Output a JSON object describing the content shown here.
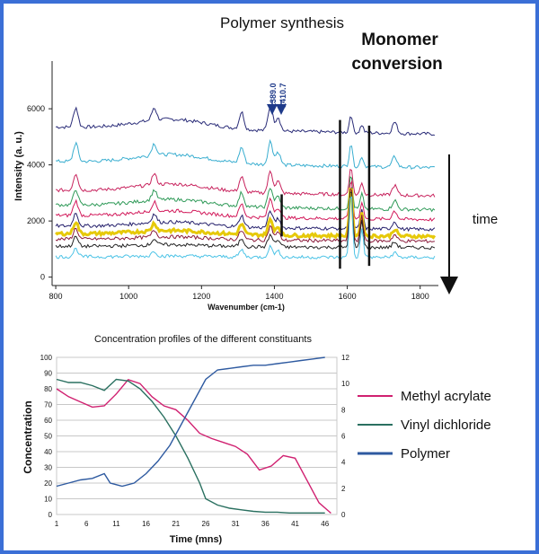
{
  "chart_data": [
    {
      "type": "line",
      "title": "",
      "xlabel": "Wavenumber (cm-1)",
      "ylabel": "Intensity (a. u.)",
      "xlim": [
        790,
        1850
      ],
      "ylim": [
        -300,
        7700
      ],
      "x_ticks": [
        "800",
        "1000",
        "1200",
        "1400",
        "1600",
        "1800"
      ],
      "y_ticks": [
        "0",
        "2000",
        "4000",
        "6000"
      ],
      "annotations": {
        "region1": "Polymer synthesis",
        "region2_line1": "Monomer",
        "region2_line2": "conversion",
        "peak1": "1389.0",
        "peak2": "1410.7",
        "arrow_label": "time"
      },
      "spectra_colors": [
        "#2a2c78",
        "#3aaed0",
        "#c8245e",
        "#2f9a58",
        "#d2195a",
        "#241f6b",
        "#e6c90a",
        "#8a1a3a",
        "#222222",
        "#4cc3e6"
      ],
      "spectra_offsets": [
        5100,
        3900,
        2900,
        2400,
        2050,
        1700,
        1450,
        1280,
        1050,
        700
      ],
      "peak_positions": [
        {
          "x": 855,
          "h": 700
        },
        {
          "x": 1070,
          "h": 450
        },
        {
          "x": 1310,
          "h": 600
        },
        {
          "x": 1389,
          "h": 900
        },
        {
          "x": 1410,
          "h": 500
        },
        {
          "x": 1610,
          "h": 1600
        },
        {
          "x": 1640,
          "h": 700
        },
        {
          "x": 1730,
          "h": 400
        }
      ],
      "vertical_markers": [
        1420,
        1580,
        1660
      ]
    },
    {
      "type": "line",
      "title": "Concentration profiles of the different constituants",
      "xlabel": "Time (mns)",
      "ylabel": "Concentration",
      "xlim": [
        1,
        48
      ],
      "ylim": [
        0,
        100
      ],
      "y2lim": [
        0,
        12
      ],
      "x_ticks": [
        "1",
        "6",
        "11",
        "16",
        "21",
        "26",
        "31",
        "36",
        "41",
        "46"
      ],
      "y_ticks": [
        "0",
        "10",
        "20",
        "30",
        "40",
        "50",
        "60",
        "70",
        "80",
        "90",
        "100"
      ],
      "y2_ticks": [
        "0",
        "2",
        "4",
        "6",
        "8",
        "10",
        "12"
      ],
      "series": [
        {
          "name": "Methyl acrylate",
          "color": "#d02070",
          "axis": "y2",
          "x": [
            1,
            3,
            5,
            7,
            9,
            11,
            13,
            15,
            17,
            19,
            21,
            23,
            25,
            27,
            29,
            31,
            33,
            35,
            37,
            39,
            41,
            43,
            45,
            47
          ],
          "values": [
            9.6,
            9.0,
            8.6,
            8.2,
            8.3,
            9.2,
            10.3,
            10.0,
            9.0,
            8.3,
            8.0,
            7.2,
            6.2,
            5.8,
            5.5,
            5.2,
            4.6,
            3.4,
            3.7,
            4.5,
            4.3,
            2.6,
            0.9,
            0.1
          ]
        },
        {
          "name": "Vinyl dichloride",
          "color": "#2a7060",
          "axis": "y1",
          "x": [
            1,
            3,
            5,
            7,
            9,
            11,
            13,
            15,
            17,
            19,
            21,
            23,
            25,
            26,
            28,
            30,
            32,
            34,
            36,
            38,
            40,
            42,
            44,
            46
          ],
          "values": [
            86,
            84,
            84,
            82,
            79,
            86,
            85,
            80,
            72,
            62,
            50,
            36,
            20,
            10,
            6,
            4,
            3,
            2,
            1.5,
            1.5,
            1,
            1,
            1,
            1
          ]
        },
        {
          "name": "Polymer",
          "color": "#2e5aa0",
          "axis": "y1",
          "x": [
            1,
            3,
            5,
            7,
            9,
            10,
            12,
            14,
            16,
            18,
            20,
            22,
            24,
            26,
            28,
            30,
            32,
            34,
            36,
            38,
            40,
            42,
            44,
            46
          ],
          "values": [
            18,
            20,
            22,
            23,
            26,
            20,
            18,
            20,
            26,
            34,
            44,
            58,
            72,
            86,
            92,
            93,
            94,
            95,
            95,
            96,
            97,
            98,
            99,
            100
          ]
        }
      ]
    }
  ]
}
